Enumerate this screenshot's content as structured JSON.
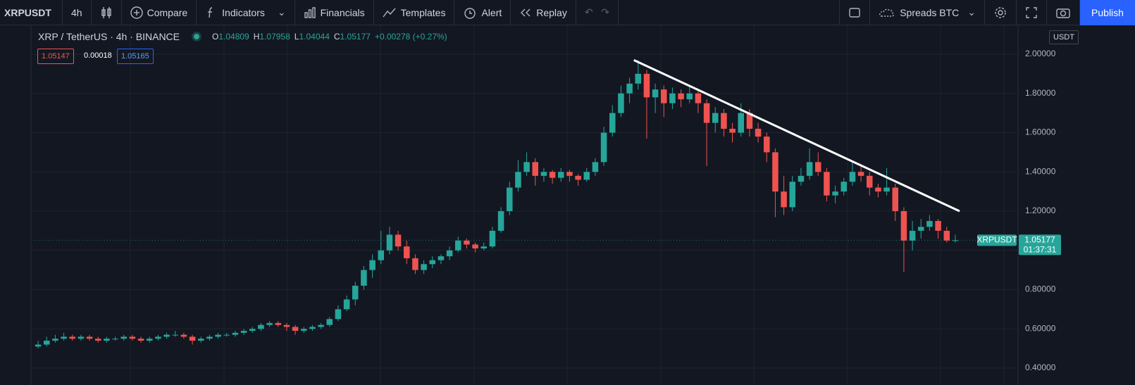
{
  "toolbar": {
    "symbol": "XRPUSDT",
    "interval": "4h",
    "compare": "Compare",
    "indicators": "Indicators",
    "financials": "Financials",
    "templates": "Templates",
    "alert": "Alert",
    "replay": "Replay",
    "spreads": "Spreads BTC",
    "publish": "Publish"
  },
  "legend": {
    "title": "XRP / TetherUS · 4h · BINANCE",
    "o": "O",
    "h": "H",
    "l": "L",
    "c": "C",
    "change": "+0.00278 (+0.27%)",
    "bid": 1.05147,
    "spread": 0.00018,
    "ask": 1.05165,
    "currency": "USDT",
    "badge_symbol": "XRPUSDT",
    "countdown": "01:37:31"
  },
  "chart_data": {
    "type": "candlestick",
    "up_color": "#26a69a",
    "down_color": "#ef5350",
    "grid": true,
    "ylim": [
      0.314,
      2.147
    ],
    "yticks": [
      {
        "value": 2.0,
        "label": "2.00000"
      },
      {
        "value": 1.8,
        "label": "1.80000"
      },
      {
        "value": 1.6,
        "label": "1.60000"
      },
      {
        "value": 1.4,
        "label": "1.40000"
      },
      {
        "value": 1.2,
        "label": "1.20000"
      },
      {
        "value": 1.0,
        "label": "1.00000"
      },
      {
        "value": 0.8,
        "label": "0.80000"
      },
      {
        "value": 0.6,
        "label": "0.60000"
      },
      {
        "value": 0.4,
        "label": "0.40000"
      }
    ],
    "trend_line": {
      "start": {
        "index": 70,
        "price": 1.97
      },
      "end": {
        "index": 108,
        "price": 1.2
      },
      "color": "#ffffff"
    },
    "candles": [
      [
        0.51,
        0.54,
        0.5,
        0.52
      ],
      [
        0.52,
        0.56,
        0.51,
        0.54
      ],
      [
        0.54,
        0.57,
        0.53,
        0.55
      ],
      [
        0.55,
        0.58,
        0.54,
        0.56
      ],
      [
        0.56,
        0.57,
        0.54,
        0.55
      ],
      [
        0.55,
        0.57,
        0.54,
        0.56
      ],
      [
        0.56,
        0.57,
        0.54,
        0.55
      ],
      [
        0.55,
        0.56,
        0.53,
        0.54
      ],
      [
        0.54,
        0.56,
        0.53,
        0.55
      ],
      [
        0.55,
        0.56,
        0.54,
        0.55
      ],
      [
        0.55,
        0.57,
        0.54,
        0.56
      ],
      [
        0.56,
        0.57,
        0.54,
        0.55
      ],
      [
        0.55,
        0.56,
        0.53,
        0.54
      ],
      [
        0.54,
        0.56,
        0.53,
        0.55
      ],
      [
        0.55,
        0.57,
        0.54,
        0.56
      ],
      [
        0.56,
        0.58,
        0.55,
        0.57
      ],
      [
        0.57,
        0.59,
        0.56,
        0.57
      ],
      [
        0.57,
        0.58,
        0.55,
        0.56
      ],
      [
        0.56,
        0.57,
        0.52,
        0.54
      ],
      [
        0.54,
        0.56,
        0.53,
        0.55
      ],
      [
        0.55,
        0.57,
        0.54,
        0.56
      ],
      [
        0.56,
        0.58,
        0.55,
        0.57
      ],
      [
        0.57,
        0.58,
        0.56,
        0.57
      ],
      [
        0.57,
        0.59,
        0.56,
        0.58
      ],
      [
        0.58,
        0.6,
        0.57,
        0.59
      ],
      [
        0.59,
        0.61,
        0.58,
        0.6
      ],
      [
        0.6,
        0.63,
        0.59,
        0.62
      ],
      [
        0.62,
        0.64,
        0.61,
        0.63
      ],
      [
        0.63,
        0.64,
        0.61,
        0.62
      ],
      [
        0.62,
        0.63,
        0.59,
        0.61
      ],
      [
        0.61,
        0.62,
        0.57,
        0.59
      ],
      [
        0.59,
        0.61,
        0.58,
        0.6
      ],
      [
        0.6,
        0.62,
        0.59,
        0.61
      ],
      [
        0.61,
        0.63,
        0.6,
        0.62
      ],
      [
        0.62,
        0.66,
        0.61,
        0.65
      ],
      [
        0.65,
        0.72,
        0.64,
        0.7
      ],
      [
        0.7,
        0.77,
        0.69,
        0.75
      ],
      [
        0.75,
        0.84,
        0.72,
        0.82
      ],
      [
        0.82,
        0.92,
        0.8,
        0.9
      ],
      [
        0.9,
        0.98,
        0.86,
        0.95
      ],
      [
        0.95,
        1.1,
        0.93,
        1.0
      ],
      [
        1.0,
        1.12,
        0.98,
        1.08
      ],
      [
        1.08,
        1.1,
        1.0,
        1.02
      ],
      [
        1.02,
        1.05,
        0.93,
        0.96
      ],
      [
        0.96,
        0.98,
        0.88,
        0.9
      ],
      [
        0.9,
        0.95,
        0.88,
        0.93
      ],
      [
        0.93,
        0.97,
        0.91,
        0.95
      ],
      [
        0.95,
        0.98,
        0.93,
        0.97
      ],
      [
        0.97,
        1.02,
        0.95,
        1.0
      ],
      [
        1.0,
        1.07,
        0.99,
        1.05
      ],
      [
        1.05,
        1.06,
        1.01,
        1.03
      ],
      [
        1.03,
        1.04,
        0.99,
        1.01
      ],
      [
        1.01,
        1.04,
        1.0,
        1.02
      ],
      [
        1.02,
        1.12,
        1.01,
        1.1
      ],
      [
        1.1,
        1.22,
        1.09,
        1.2
      ],
      [
        1.2,
        1.35,
        1.18,
        1.32
      ],
      [
        1.32,
        1.46,
        1.3,
        1.4
      ],
      [
        1.4,
        1.5,
        1.38,
        1.45
      ],
      [
        1.45,
        1.47,
        1.33,
        1.38
      ],
      [
        1.38,
        1.42,
        1.35,
        1.4
      ],
      [
        1.4,
        1.41,
        1.34,
        1.37
      ],
      [
        1.37,
        1.42,
        1.35,
        1.4
      ],
      [
        1.4,
        1.41,
        1.35,
        1.38
      ],
      [
        1.38,
        1.39,
        1.33,
        1.36
      ],
      [
        1.36,
        1.42,
        1.35,
        1.4
      ],
      [
        1.4,
        1.47,
        1.38,
        1.45
      ],
      [
        1.45,
        1.63,
        1.43,
        1.6
      ],
      [
        1.6,
        1.74,
        1.58,
        1.7
      ],
      [
        1.7,
        1.84,
        1.68,
        1.8
      ],
      [
        1.8,
        1.88,
        1.75,
        1.85
      ],
      [
        1.85,
        1.97,
        1.82,
        1.9
      ],
      [
        1.9,
        1.92,
        1.57,
        1.78
      ],
      [
        1.78,
        1.85,
        1.7,
        1.82
      ],
      [
        1.82,
        1.84,
        1.68,
        1.75
      ],
      [
        1.75,
        1.83,
        1.72,
        1.8
      ],
      [
        1.8,
        1.82,
        1.73,
        1.77
      ],
      [
        1.77,
        1.84,
        1.75,
        1.8
      ],
      [
        1.8,
        1.82,
        1.7,
        1.75
      ],
      [
        1.75,
        1.77,
        1.43,
        1.65
      ],
      [
        1.65,
        1.73,
        1.6,
        1.7
      ],
      [
        1.7,
        1.72,
        1.58,
        1.62
      ],
      [
        1.62,
        1.65,
        1.55,
        1.6
      ],
      [
        1.6,
        1.75,
        1.58,
        1.7
      ],
      [
        1.7,
        1.72,
        1.58,
        1.62
      ],
      [
        1.62,
        1.65,
        1.55,
        1.58
      ],
      [
        1.58,
        1.6,
        1.45,
        1.5
      ],
      [
        1.5,
        1.52,
        1.17,
        1.3
      ],
      [
        1.3,
        1.38,
        1.18,
        1.22
      ],
      [
        1.22,
        1.38,
        1.2,
        1.35
      ],
      [
        1.35,
        1.42,
        1.33,
        1.38
      ],
      [
        1.38,
        1.52,
        1.36,
        1.45
      ],
      [
        1.45,
        1.5,
        1.38,
        1.4
      ],
      [
        1.4,
        1.42,
        1.25,
        1.28
      ],
      [
        1.28,
        1.33,
        1.24,
        1.3
      ],
      [
        1.3,
        1.37,
        1.28,
        1.35
      ],
      [
        1.35,
        1.45,
        1.33,
        1.4
      ],
      [
        1.4,
        1.43,
        1.35,
        1.38
      ],
      [
        1.38,
        1.4,
        1.28,
        1.32
      ],
      [
        1.32,
        1.34,
        1.27,
        1.3
      ],
      [
        1.3,
        1.42,
        1.28,
        1.32
      ],
      [
        1.32,
        1.34,
        1.15,
        1.2
      ],
      [
        1.2,
        1.22,
        0.89,
        1.05
      ],
      [
        1.05,
        1.15,
        1.0,
        1.1
      ],
      [
        1.1,
        1.16,
        1.06,
        1.12
      ],
      [
        1.12,
        1.18,
        1.1,
        1.15
      ],
      [
        1.15,
        1.16,
        1.06,
        1.1
      ],
      [
        1.1,
        1.12,
        1.04,
        1.05
      ],
      [
        1.04809,
        1.07958,
        1.04044,
        1.05177
      ]
    ]
  }
}
